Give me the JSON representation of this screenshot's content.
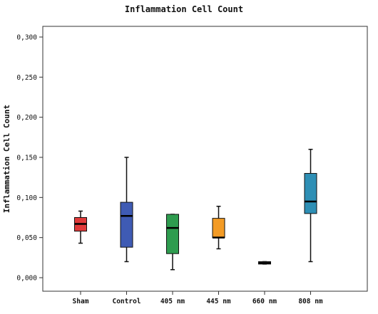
{
  "chart_data": {
    "type": "boxplot",
    "title": "Inflammation Cell Count",
    "xlabel": "",
    "ylabel": "Inflammation Cell Count",
    "ylim": [
      0,
      0.3
    ],
    "yticks": [
      "0,000",
      "0,050",
      "0,100",
      "0,150",
      "0,200",
      "0,250",
      "0,300"
    ],
    "grid": false,
    "categories": [
      "Sham",
      "Control",
      "405 nm",
      "445 nm",
      "660 nm",
      "808 nm"
    ],
    "boxes": [
      {
        "name": "Sham",
        "min": 0.043,
        "q1": 0.058,
        "median": 0.067,
        "q3": 0.075,
        "max": 0.083,
        "color": "#e03a3a"
      },
      {
        "name": "Control",
        "min": 0.02,
        "q1": 0.038,
        "median": 0.077,
        "q3": 0.094,
        "max": 0.15,
        "color": "#3f5bb4"
      },
      {
        "name": "405 nm",
        "min": 0.01,
        "q1": 0.03,
        "median": 0.062,
        "q3": 0.079,
        "max": 0.079,
        "color": "#2e9c4f"
      },
      {
        "name": "445 nm",
        "min": 0.036,
        "q1": 0.05,
        "median": 0.05,
        "q3": 0.074,
        "max": 0.089,
        "color": "#f39b25"
      },
      {
        "name": "660 nm",
        "min": 0.017,
        "q1": 0.017,
        "median": 0.018,
        "q3": 0.02,
        "max": 0.02,
        "color": "#222222"
      },
      {
        "name": "808 nm",
        "min": 0.02,
        "q1": 0.08,
        "median": 0.095,
        "q3": 0.13,
        "max": 0.16,
        "color": "#2e8fb5"
      }
    ]
  }
}
